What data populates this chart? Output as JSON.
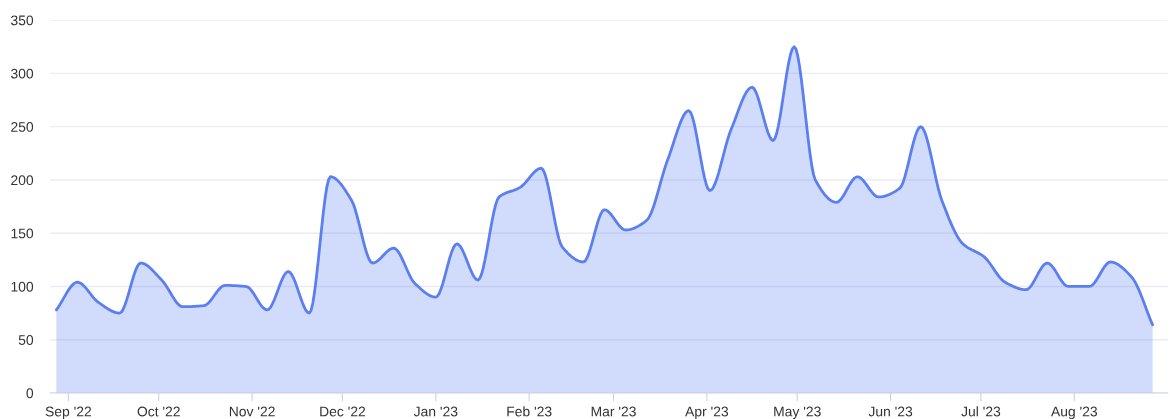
{
  "chart_data": {
    "type": "area",
    "x": [
      "2022-08-28",
      "2022-09-04",
      "2022-09-11",
      "2022-09-18",
      "2022-09-25",
      "2022-10-02",
      "2022-10-09",
      "2022-10-16",
      "2022-10-23",
      "2022-10-30",
      "2022-11-06",
      "2022-11-13",
      "2022-11-20",
      "2022-11-27",
      "2022-12-04",
      "2022-12-11",
      "2022-12-18",
      "2022-12-25",
      "2023-01-01",
      "2023-01-08",
      "2023-01-15",
      "2023-01-22",
      "2023-01-29",
      "2023-02-05",
      "2023-02-12",
      "2023-02-19",
      "2023-02-26",
      "2023-03-05",
      "2023-03-12",
      "2023-03-19",
      "2023-03-26",
      "2023-04-02",
      "2023-04-09",
      "2023-04-16",
      "2023-04-23",
      "2023-04-30",
      "2023-05-07",
      "2023-05-14",
      "2023-05-21",
      "2023-05-28",
      "2023-06-04",
      "2023-06-11",
      "2023-06-18",
      "2023-06-25",
      "2023-07-02",
      "2023-07-09",
      "2023-07-16",
      "2023-07-23",
      "2023-07-30",
      "2023-08-06",
      "2023-08-13",
      "2023-08-20",
      "2023-08-27"
    ],
    "series": [
      {
        "color": "#5b7ff0",
        "values": [
          78,
          104,
          85,
          75,
          122,
          106,
          81,
          82,
          101,
          100,
          78,
          114,
          75,
          203,
          181,
          122,
          136,
          103,
          90,
          140,
          106,
          184,
          193,
          211,
          137,
          123,
          172,
          153,
          162,
          219,
          265,
          190,
          247,
          287,
          237,
          325,
          200,
          179,
          203,
          184,
          192,
          250,
          181,
          140,
          128,
          104,
          97,
          122,
          100,
          100,
          123,
          109,
          64
        ]
      }
    ],
    "xlim": [
      "2022-08-26",
      "2023-09-01"
    ],
    "xticks": [
      {
        "value": "2022-09-01",
        "label": "Sep '22"
      },
      {
        "value": "2022-10-01",
        "label": "Oct '22"
      },
      {
        "value": "2022-11-01",
        "label": "Nov '22"
      },
      {
        "value": "2022-12-01",
        "label": "Dec '22"
      },
      {
        "value": "2023-01-01",
        "label": "Jan '23"
      },
      {
        "value": "2023-02-01",
        "label": "Feb '23"
      },
      {
        "value": "2023-03-01",
        "label": "Mar '23"
      },
      {
        "value": "2023-04-01",
        "label": "Apr '23"
      },
      {
        "value": "2023-05-01",
        "label": "May '23"
      },
      {
        "value": "2023-06-01",
        "label": "Jun '23"
      },
      {
        "value": "2023-07-01",
        "label": "Jul '23"
      },
      {
        "value": "2023-08-01",
        "label": "Aug '23"
      }
    ],
    "ylim": [
      0,
      350
    ],
    "yticks": [
      0,
      50,
      100,
      150,
      200,
      250,
      300,
      350
    ],
    "grid": "y"
  }
}
